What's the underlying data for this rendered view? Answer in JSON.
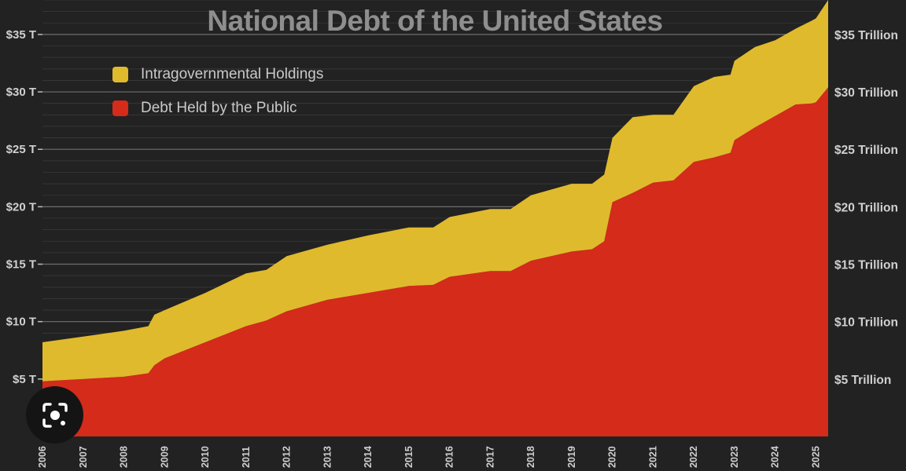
{
  "chart_data": {
    "type": "area",
    "stacked": true,
    "title": "National Debt of the United States",
    "y_unit": "trillions of USD",
    "ylim": [
      0,
      38
    ],
    "xlim": [
      2006,
      2025.3
    ],
    "left_ticks": [
      {
        "value": 5,
        "label": "$5 T"
      },
      {
        "value": 10,
        "label": "$10 T"
      },
      {
        "value": 15,
        "label": "$15 T"
      },
      {
        "value": 20,
        "label": "$20 T"
      },
      {
        "value": 25,
        "label": "$25 T"
      },
      {
        "value": 30,
        "label": "$30 T"
      },
      {
        "value": 35,
        "label": "$35 T"
      }
    ],
    "right_ticks": [
      {
        "value": 5,
        "label": "$5 Trillion"
      },
      {
        "value": 10,
        "label": "$10 Trillion"
      },
      {
        "value": 15,
        "label": "$15 Trillion"
      },
      {
        "value": 20,
        "label": "$20 Trillion"
      },
      {
        "value": 25,
        "label": "$25 Trillion"
      },
      {
        "value": 30,
        "label": "$30 Trillion"
      },
      {
        "value": 35,
        "label": "$35 Trillion"
      }
    ],
    "x_ticks": [
      "2006",
      "2007",
      "2008",
      "2009",
      "2010",
      "2011",
      "2012",
      "2013",
      "2014",
      "2015",
      "2016",
      "2017",
      "2018",
      "2019",
      "2020",
      "2021",
      "2022",
      "2023",
      "2024",
      "2025"
    ],
    "legend_position": "top-left",
    "grid": true,
    "x": [
      2006.0,
      2007.0,
      2008.0,
      2008.6,
      2008.75,
      2009.0,
      2010.0,
      2011.0,
      2011.5,
      2012.0,
      2013.0,
      2014.0,
      2015.0,
      2015.6,
      2016.0,
      2017.0,
      2017.5,
      2018.0,
      2019.0,
      2019.5,
      2019.8,
      2020.0,
      2020.5,
      2021.0,
      2021.5,
      2022.0,
      2022.5,
      2022.9,
      2023.0,
      2023.5,
      2024.0,
      2024.5,
      2024.9,
      2025.0,
      2025.3
    ],
    "series": [
      {
        "name": "Debt Held by the Public",
        "color": "#d42b1a",
        "values": [
          4.8,
          5.0,
          5.2,
          5.5,
          6.2,
          6.8,
          8.2,
          9.6,
          10.1,
          10.9,
          11.9,
          12.5,
          13.1,
          13.2,
          13.9,
          14.4,
          14.4,
          15.3,
          16.1,
          16.3,
          17.0,
          20.4,
          21.2,
          22.1,
          22.3,
          23.9,
          24.3,
          24.7,
          25.8,
          26.9,
          27.9,
          28.9,
          29.0,
          29.1,
          30.4
        ]
      },
      {
        "name": "Intragovernmental Holdings",
        "color": "#e0ba2d",
        "values": [
          3.4,
          3.7,
          4.0,
          4.1,
          4.4,
          4.2,
          4.3,
          4.6,
          4.4,
          4.8,
          4.8,
          5.0,
          5.1,
          5.0,
          5.2,
          5.4,
          5.4,
          5.7,
          5.9,
          5.7,
          5.8,
          5.6,
          6.6,
          5.9,
          5.7,
          6.6,
          7.0,
          6.8,
          6.9,
          7.0,
          6.6,
          6.6,
          7.2,
          7.3,
          7.6
        ]
      }
    ]
  }
}
